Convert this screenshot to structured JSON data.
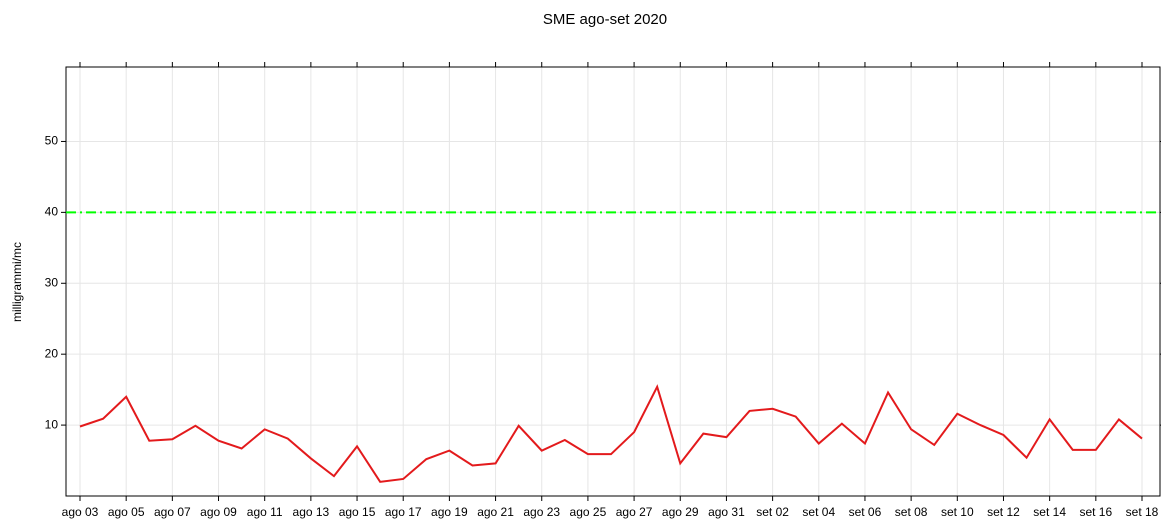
{
  "chart_data": {
    "type": "line",
    "title": "SME ago-set 2020",
    "y_label": "milligrammi/mc",
    "categories": [
      "ago 03",
      null,
      "ago 05",
      null,
      "ago 07",
      null,
      "ago 09",
      null,
      "ago 11",
      null,
      "ago 13",
      null,
      "ago 15",
      null,
      "ago 17",
      null,
      "ago 19",
      null,
      "ago 21",
      null,
      "ago 23",
      null,
      "ago 25",
      null,
      "ago 27",
      null,
      "ago 29",
      null,
      "ago 31",
      null,
      "set 02",
      null,
      "set 04",
      null,
      "set 06",
      null,
      "set 08",
      null,
      "set 10",
      null,
      "set 12",
      null,
      "set 14",
      null,
      "set 16",
      null,
      "set 18"
    ],
    "series": [
      {
        "color": "#e31a1c",
        "values": [
          9.8,
          10.9,
          14.0,
          7.8,
          8.0,
          9.9,
          7.8,
          6.7,
          9.4,
          8.1,
          5.3,
          2.8,
          7.0,
          2.0,
          2.4,
          5.2,
          6.4,
          4.3,
          4.6,
          9.9,
          6.4,
          7.9,
          5.9,
          5.9,
          9.0,
          15.4,
          4.6,
          8.8,
          8.3,
          12.0,
          12.3,
          11.2,
          7.4,
          10.2,
          7.4,
          14.6,
          9.4,
          7.2,
          11.6,
          10.0,
          8.6,
          5.4,
          10.8,
          6.5,
          6.5,
          10.8,
          8.1
        ]
      }
    ],
    "reference_line": {
      "value": 40,
      "color": "#00ff00"
    },
    "ylim": [
      0,
      60.5
    ],
    "yticks": [
      10,
      20,
      30,
      40,
      50
    ],
    "grid": true
  }
}
